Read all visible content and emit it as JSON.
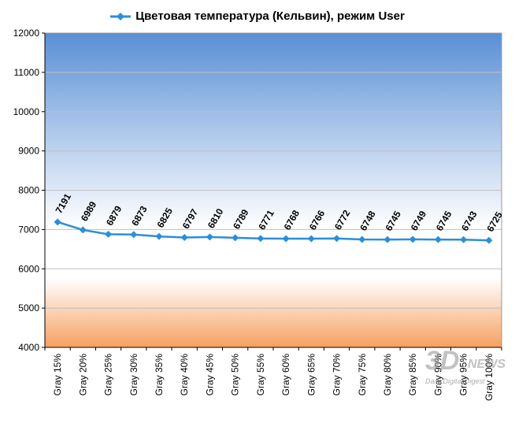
{
  "chart_data": {
    "type": "line",
    "title": "Цветовая температура (Кельвин), режим User",
    "categories": [
      "Gray 15%",
      "Gray 20%",
      "Gray 25%",
      "Gray 30%",
      "Gray 35%",
      "Gray 40%",
      "Gray 45%",
      "Gray 50%",
      "Gray 55%",
      "Gray 60%",
      "Gray 65%",
      "Gray 70%",
      "Gray 75%",
      "Gray 80%",
      "Gray 85%",
      "Gray 90%",
      "Gray 95%",
      "Gray 100%"
    ],
    "series": [
      {
        "name": "Цветовая температура (Кельвин), режим User",
        "values": [
          7191,
          6989,
          6879,
          6873,
          6825,
          6797,
          6810,
          6789,
          6771,
          6768,
          6766,
          6772,
          6748,
          6745,
          6749,
          6745,
          6743,
          6725
        ],
        "color": "#2a8fd8"
      }
    ],
    "ylim": [
      4000,
      12000
    ],
    "yticks": [
      4000,
      5000,
      6000,
      7000,
      8000,
      9000,
      10000,
      11000,
      12000
    ],
    "grid": true,
    "legend_position": "top",
    "colors": {
      "bg_top": "#5a8fd6",
      "bg_mid": "#ffffff",
      "bg_bottom": "#f5a060",
      "line": "#2a8fd8",
      "gridline": "#c0c0c0"
    }
  },
  "watermark": {
    "logo": "3DNews",
    "tagline": "Daily Digital Digest"
  }
}
